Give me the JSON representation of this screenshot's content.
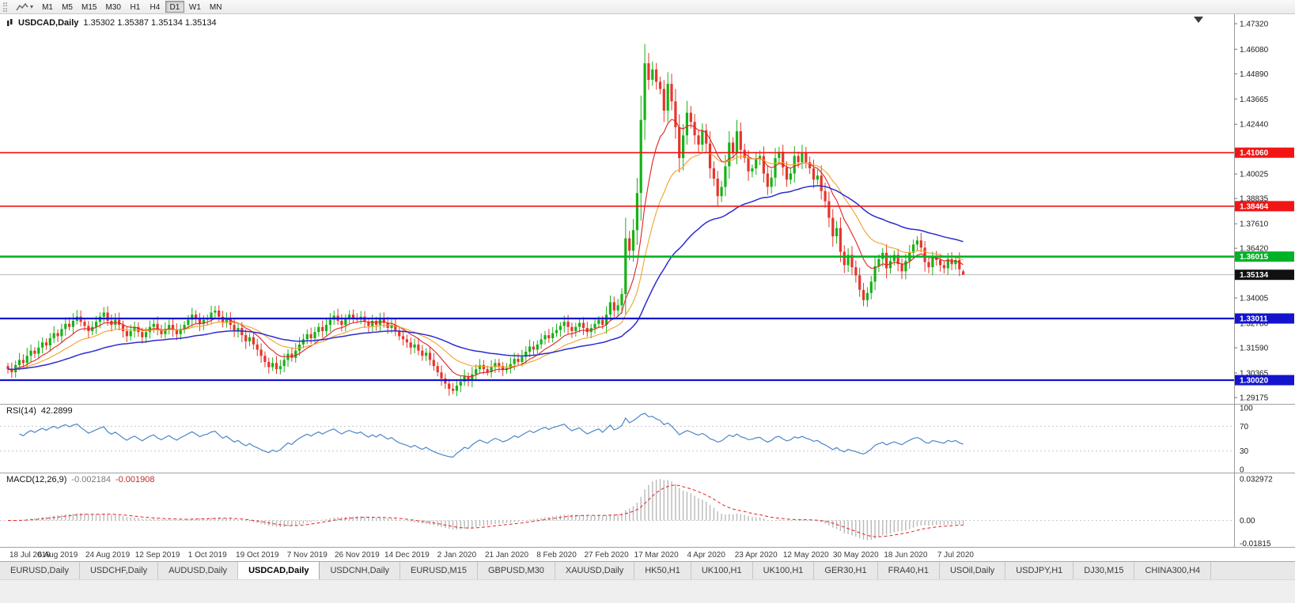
{
  "toolbar": {
    "timeframes": [
      "M1",
      "M5",
      "M15",
      "M30",
      "H1",
      "H4",
      "D1",
      "W1",
      "MN"
    ],
    "active_timeframe": "D1"
  },
  "icons": {
    "caret_down": "▾",
    "shift_marker": "triangle-down"
  },
  "chart": {
    "title": "USDCAD,Daily",
    "ohlc": "1.35302 1.35387 1.35134 1.35134",
    "price_scale_ticks": [
      "1.47320",
      "1.46080",
      "1.44890",
      "1.43665",
      "1.42440",
      "1.40025",
      "1.38835",
      "1.37610",
      "1.36420",
      "1.34005",
      "1.32780",
      "1.31590",
      "1.30365",
      "1.29175"
    ]
  },
  "rsi": {
    "title": "RSI(14)",
    "value": "42.2899",
    "scale": [
      "100",
      "70",
      "30",
      "0"
    ],
    "levels": [
      70,
      30
    ]
  },
  "macd": {
    "title": "MACD(12,26,9)",
    "value1": "-0.002184",
    "value2": "-0.001908",
    "scale": [
      "0.032972",
      "0.00",
      "-0.01815"
    ]
  },
  "tabs": {
    "active": "USDCAD,Daily",
    "items": [
      "EURUSD,Daily",
      "USDCHF,Daily",
      "AUDUSD,Daily",
      "USDCAD,Daily",
      "USDCNH,Daily",
      "EURUSD,M15",
      "GBPUSD,M30",
      "XAUUSD,Daily",
      "HK50,H1",
      "UK100,H1",
      "UK100,H1",
      "GER30,H1",
      "FRA40,H1",
      "USOil,Daily",
      "USDJPY,H1",
      "DJ30,M15",
      "CHINA300,H4"
    ],
    "note": "active tab is the USDCAD daily chart"
  },
  "colors": {
    "candle_up": "#16b216",
    "candle_down": "#e6352c",
    "ma_fast": "#e02222",
    "ma_mid": "#f0a32a",
    "ma_slow": "#2c2cd0",
    "rsi_line": "#4a86c8",
    "macd_hist": "#b9b9b9",
    "macd_signal": "#e02222",
    "resistance_red": "#f21515",
    "support_green": "#00b226",
    "support_blue": "#1414cf",
    "current_price_badge": "#111111"
  },
  "chart_data": {
    "type": "candlestick",
    "symbol": "USDCAD",
    "timeframe": "Daily",
    "ylim": [
      1.28906,
      1.47512
    ],
    "bars_per_label": 13,
    "x_labels": [
      "18 Jul 2019",
      "6 Aug 2019",
      "24 Aug 2019",
      "12 Sep 2019",
      "1 Oct 2019",
      "19 Oct 2019",
      "7 Nov 2019",
      "26 Nov 2019",
      "14 Dec 2019",
      "2 Jan 2020",
      "21 Jan 2020",
      "8 Feb 2020",
      "27 Feb 2020",
      "17 Mar 2020",
      "4 Apr 2020",
      "23 Apr 2020",
      "12 May 2020",
      "30 May 2020",
      "18 Jun 2020",
      "7 Jul 2020"
    ],
    "closes": [
      1.3055,
      1.304,
      1.3075,
      1.31,
      1.3085,
      1.312,
      1.3145,
      1.313,
      1.316,
      1.3185,
      1.317,
      1.3205,
      1.323,
      1.3215,
      1.325,
      1.3275,
      1.326,
      1.329,
      1.331,
      1.3285,
      1.3265,
      1.324,
      1.326,
      1.3285,
      1.331,
      1.333,
      1.329,
      1.327,
      1.3295,
      1.327,
      1.324,
      1.3215,
      1.324,
      1.326,
      1.3235,
      1.321,
      1.3235,
      1.326,
      1.3275,
      1.3245,
      1.3225,
      1.325,
      1.327,
      1.3245,
      1.3225,
      1.325,
      1.327,
      1.3295,
      1.332,
      1.33,
      1.3275,
      1.3295,
      1.3305,
      1.333,
      1.334,
      1.331,
      1.328,
      1.33,
      1.327,
      1.324,
      1.3255,
      1.322,
      1.319,
      1.321,
      1.3175,
      1.315,
      1.312,
      1.309,
      1.3065,
      1.3085,
      1.3055,
      1.307,
      1.31,
      1.313,
      1.311,
      1.3145,
      1.3175,
      1.32,
      1.3225,
      1.3205,
      1.3235,
      1.326,
      1.324,
      1.327,
      1.3295,
      1.3315,
      1.329,
      1.327,
      1.33,
      1.332,
      1.3305,
      1.3295,
      1.331,
      1.3285,
      1.3265,
      1.329,
      1.327,
      1.33,
      1.328,
      1.3255,
      1.327,
      1.324,
      1.3215,
      1.32,
      1.3185,
      1.316,
      1.3175,
      1.3145,
      1.312,
      1.3135,
      1.31,
      1.307,
      1.304,
      1.301,
      1.2985,
      1.296,
      1.295,
      1.2975,
      1.2995,
      1.302,
      1.3,
      1.303,
      1.3055,
      1.3075,
      1.3055,
      1.304,
      1.3065,
      1.3085,
      1.307,
      1.305,
      1.306,
      1.308,
      1.3105,
      1.309,
      1.3115,
      1.314,
      1.3165,
      1.315,
      1.3175,
      1.32,
      1.322,
      1.3205,
      1.323,
      1.3245,
      1.3265,
      1.3285,
      1.326,
      1.324,
      1.326,
      1.328,
      1.3255,
      1.3235,
      1.3255,
      1.3275,
      1.3295,
      1.327,
      1.332,
      1.338,
      1.334,
      1.3365,
      1.342,
      1.369,
      1.363,
      1.373,
      1.391,
      1.4265,
      1.454,
      1.446,
      1.451,
      1.445,
      1.4415,
      1.431,
      1.444,
      1.4355,
      1.423,
      1.408,
      1.419,
      1.43,
      1.4255,
      1.419,
      1.4145,
      1.4215,
      1.415,
      1.403,
      1.398,
      1.3895,
      1.394,
      1.404,
      1.4155,
      1.4105,
      1.421,
      1.412,
      1.408,
      1.4015,
      1.403,
      1.4075,
      1.409,
      1.4005,
      1.394,
      1.3985,
      1.408,
      1.411,
      1.4035,
      1.3975,
      1.4005,
      1.409,
      1.406,
      1.4105,
      1.406,
      1.403,
      1.3975,
      1.3995,
      1.392,
      1.387,
      1.379,
      1.37,
      1.374,
      1.3625,
      1.356,
      1.361,
      1.355,
      1.351,
      1.344,
      1.339,
      1.3425,
      1.348,
      1.3555,
      1.359,
      1.362,
      1.3545,
      1.358,
      1.361,
      1.3565,
      1.353,
      1.358,
      1.362,
      1.366,
      1.368,
      1.3645,
      1.3575,
      1.355,
      1.36,
      1.3585,
      1.356,
      1.3545,
      1.359,
      1.3565,
      1.3585,
      1.354,
      1.3513
    ],
    "last_candle_ohlc": [
      1.35302,
      1.35387,
      1.35134,
      1.35134
    ],
    "moving_averages": [
      {
        "period": 10,
        "color": "#e02222"
      },
      {
        "period": 21,
        "color": "#f0a32a"
      },
      {
        "period": 55,
        "color": "#2c2cd0"
      }
    ],
    "rsi_period": 14,
    "rsi_ylim": [
      0,
      100
    ],
    "macd_params": [
      12,
      26,
      9
    ],
    "macd_ylim": [
      -0.0185,
      0.033
    ],
    "hlines": [
      {
        "price": 1.4106,
        "label": "1.41060",
        "color": "#f21515",
        "width": 1.6
      },
      {
        "price": 1.38464,
        "label": "1.38464",
        "color": "#f21515",
        "width": 1.6
      },
      {
        "price": 1.36015,
        "label": "1.36015",
        "color": "#00b226",
        "width": 2.6
      },
      {
        "price": 1.33011,
        "label": "1.33011",
        "color": "#1414cf",
        "width": 2.2
      },
      {
        "price": 1.3002,
        "label": "1.30020",
        "color": "#1414cf",
        "width": 2.2
      }
    ],
    "price_line": {
      "price": 1.35134,
      "label": "1.35134",
      "line_color": "#b8b8b8",
      "badge_color": "#111111"
    }
  }
}
